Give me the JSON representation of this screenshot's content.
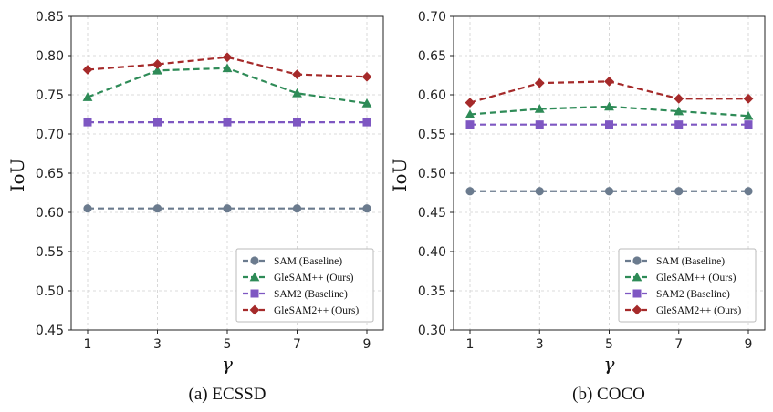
{
  "chart_data": [
    {
      "type": "line",
      "title": "(a) ECSSD",
      "xlabel": "γ",
      "ylabel": "IoU",
      "x": [
        1,
        3,
        5,
        7,
        9
      ],
      "xticks": [
        "1",
        "3",
        "5",
        "7",
        "9"
      ],
      "yticks": [
        "0.45",
        "0.50",
        "0.55",
        "0.60",
        "0.65",
        "0.70",
        "0.75",
        "0.80",
        "0.85"
      ],
      "ylim": [
        0.45,
        0.85
      ],
      "grid": true,
      "legend_position": "bottom-right",
      "series": [
        {
          "name": "SAM (Baseline)",
          "values": [
            0.605,
            0.605,
            0.605,
            0.605,
            0.605
          ],
          "color": "#6b7b8e",
          "marker": "circle"
        },
        {
          "name": "GleSAM++ (Ours)",
          "values": [
            0.747,
            0.781,
            0.784,
            0.752,
            0.739
          ],
          "color": "#2e8b57",
          "marker": "triangle"
        },
        {
          "name": "SAM2 (Baseline)",
          "values": [
            0.715,
            0.715,
            0.715,
            0.715,
            0.715
          ],
          "color": "#7e57c2",
          "marker": "square"
        },
        {
          "name": "GleSAM2++ (Ours)",
          "values": [
            0.782,
            0.789,
            0.798,
            0.776,
            0.773
          ],
          "color": "#a52a2a",
          "marker": "diamond"
        }
      ]
    },
    {
      "type": "line",
      "title": "(b) COCO",
      "xlabel": "γ",
      "ylabel": "IoU",
      "x": [
        1,
        3,
        5,
        7,
        9
      ],
      "xticks": [
        "1",
        "3",
        "5",
        "7",
        "9"
      ],
      "yticks": [
        "0.30",
        "0.35",
        "0.40",
        "0.45",
        "0.50",
        "0.55",
        "0.60",
        "0.65",
        "0.70"
      ],
      "ylim": [
        0.3,
        0.7
      ],
      "grid": true,
      "legend_position": "bottom-right",
      "series": [
        {
          "name": "SAM (Baseline)",
          "values": [
            0.477,
            0.477,
            0.477,
            0.477,
            0.477
          ],
          "color": "#6b7b8e",
          "marker": "circle"
        },
        {
          "name": "GleSAM++ (Ours)",
          "values": [
            0.575,
            0.582,
            0.585,
            0.579,
            0.573
          ],
          "color": "#2e8b57",
          "marker": "triangle"
        },
        {
          "name": "SAM2 (Baseline)",
          "values": [
            0.562,
            0.562,
            0.562,
            0.562,
            0.562
          ],
          "color": "#7e57c2",
          "marker": "square"
        },
        {
          "name": "GleSAM2++ (Ours)",
          "values": [
            0.59,
            0.615,
            0.617,
            0.595,
            0.595
          ],
          "color": "#a52a2a",
          "marker": "diamond"
        }
      ]
    }
  ]
}
